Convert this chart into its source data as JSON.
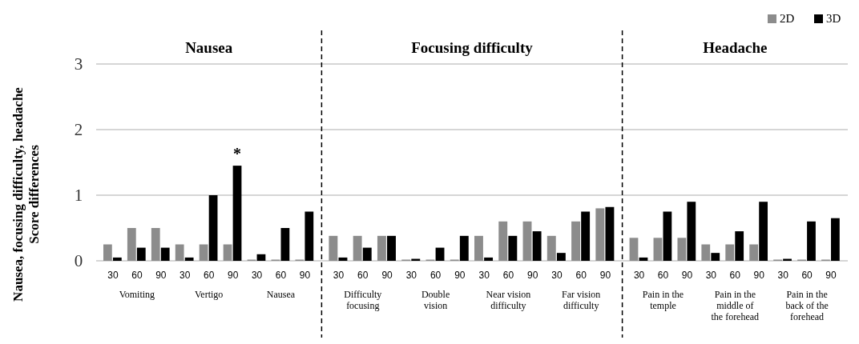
{
  "chart_data": [
    {
      "type": "bar",
      "title": "Nausea",
      "ylabel": "Nausea, focusing difficulty, headache\nScore differences",
      "categories": [
        "30",
        "60",
        "90",
        "30",
        "60",
        "90",
        "30",
        "60",
        "90"
      ],
      "series": [
        {
          "color": "#8c8c8c",
          "values": [
            0.25,
            0.5,
            0.5,
            0.25,
            0.25,
            0.25,
            0,
            0,
            0
          ]
        },
        {
          "color": "#000000",
          "values": [
            0.05,
            0.2,
            0.2,
            0.05,
            1.0,
            1.45,
            0.1,
            0.5,
            0.75
          ]
        }
      ],
      "ylim": [
        0,
        3
      ],
      "yticks": [
        0,
        1,
        2,
        3
      ],
      "grid": "y",
      "legend": false,
      "annotations": [
        "Vomiting",
        "Vertigo",
        "Nausea",
        "*"
      ]
    },
    {
      "type": "bar",
      "title": "Focusing difficulty",
      "categories": [
        "30",
        "60",
        "90",
        "30",
        "60",
        "90",
        "30",
        "60",
        "90",
        "30",
        "60",
        "90"
      ],
      "series": [
        {
          "color": "#8c8c8c",
          "values": [
            0.38,
            0.38,
            0.38,
            0,
            0,
            0,
            0.38,
            0.6,
            0.6,
            0.38,
            0.6,
            0.8
          ]
        },
        {
          "color": "#000000",
          "values": [
            0.05,
            0.2,
            0.38,
            0.03,
            0.2,
            0.38,
            0.05,
            0.38,
            0.45,
            0.12,
            0.75,
            0.82
          ]
        }
      ],
      "ylim": [
        0,
        3
      ],
      "yticks": [
        0,
        1,
        2,
        3
      ],
      "grid": "y",
      "legend": false,
      "tick_labels": "x",
      "annotations": [
        "Difficulty focusing",
        "Double vision",
        "Near vision difficulty",
        "Far vision difficulty"
      ]
    },
    {
      "type": "bar",
      "title": "Headache",
      "categories": [
        "30",
        "60",
        "90",
        "30",
        "60",
        "90",
        "30",
        "60",
        "90"
      ],
      "series": [
        {
          "name": "2D",
          "color": "#8c8c8c",
          "values": [
            0.35,
            0.35,
            0.35,
            0.25,
            0.25,
            0.25,
            0,
            0,
            0
          ]
        },
        {
          "name": "3D",
          "color": "#000000",
          "values": [
            0.05,
            0.75,
            0.9,
            0.12,
            0.45,
            0.9,
            0.03,
            0.6,
            0.65
          ]
        }
      ],
      "ylim": [
        0,
        3
      ],
      "yticks": [
        0,
        1,
        2,
        3
      ],
      "grid": "y",
      "legend": "top right",
      "tick_labels": "x",
      "annotations": [
        "Pain in the temple",
        "Pain in the middle of the forehead",
        "Pain in the back of the forehead"
      ]
    }
  ]
}
